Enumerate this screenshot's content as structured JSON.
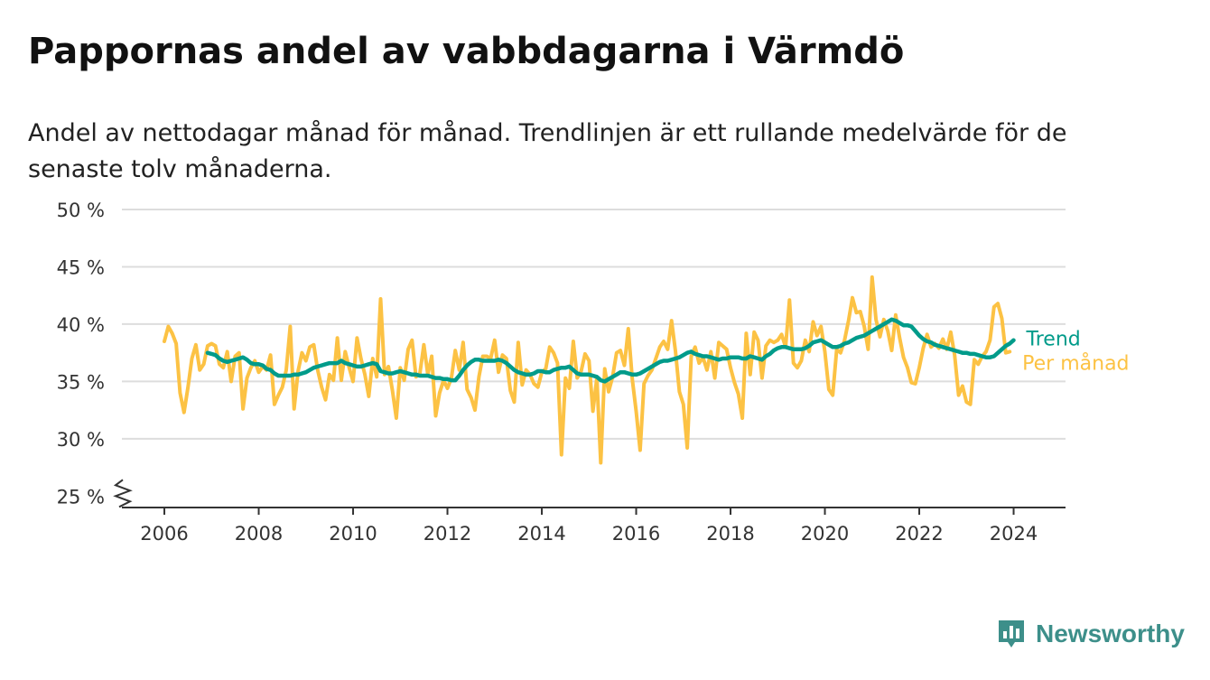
{
  "header": {
    "title": "Pappornas andel av vabbdagarna i Värmdö",
    "subtitle": "Andel av nettodagar månad för månad. Trendlinjen är ett rullande medelvärde för de senaste tolv månaderna."
  },
  "brand": {
    "name": "Newsworthy",
    "icon": "newsworthy-logo-icon",
    "color": "#3d8f8a"
  },
  "colors": {
    "monthly": "#fcc244",
    "trend": "#009b8a",
    "grid": "#dddddd",
    "axis": "#333333"
  },
  "chart_data": {
    "type": "line",
    "title": "Pappornas andel av vabbdagarna i Värmdö",
    "subtitle": "Andel av nettodagar månad för månad. Trendlinjen är ett rullande medelvärde för de senaste tolv månaderna.",
    "xlabel": "",
    "ylabel": "",
    "xlim": [
      2005.1,
      2025.1
    ],
    "ylim": [
      24,
      50
    ],
    "y_ticks": [
      {
        "value": 25,
        "label": "25 %"
      },
      {
        "value": 30,
        "label": "30 %"
      },
      {
        "value": 35,
        "label": "35 %"
      },
      {
        "value": 40,
        "label": "40 %"
      },
      {
        "value": 45,
        "label": "45 %"
      },
      {
        "value": 50,
        "label": "50 %"
      }
    ],
    "x_ticks": [
      {
        "value": 2006,
        "label": "2006"
      },
      {
        "value": 2008,
        "label": "2008"
      },
      {
        "value": 2010,
        "label": "2010"
      },
      {
        "value": 2012,
        "label": "2012"
      },
      {
        "value": 2014,
        "label": "2014"
      },
      {
        "value": 2016,
        "label": "2016"
      },
      {
        "value": 2018,
        "label": "2018"
      },
      {
        "value": 2020,
        "label": "2020"
      },
      {
        "value": 2022,
        "label": "2022"
      },
      {
        "value": 2024,
        "label": "2024"
      }
    ],
    "axis_break": true,
    "grid": true,
    "legend": "direct labels at right end of lines",
    "series": [
      {
        "name": "Per månad",
        "color": "#fcc244",
        "start": "2006-01",
        "values": [
          38.5,
          39.8,
          39.2,
          38.3,
          34.0,
          32.3,
          34.5,
          37.0,
          38.2,
          36.0,
          36.5,
          38.1,
          38.3,
          38.1,
          36.5,
          36.2,
          37.6,
          35.0,
          37.2,
          37.5,
          32.6,
          35.3,
          36.2,
          36.8,
          35.8,
          36.3,
          36.0,
          37.3,
          33.0,
          33.8,
          34.5,
          36.0,
          39.8,
          32.6,
          35.9,
          37.5,
          36.8,
          38.0,
          38.2,
          36.0,
          34.5,
          33.4,
          35.6,
          35.1,
          38.8,
          35.1,
          37.6,
          36.2,
          35.0,
          38.8,
          37.0,
          35.6,
          33.7,
          37.0,
          35.4,
          42.2,
          35.6,
          36.3,
          34.2,
          31.8,
          36.2,
          35.1,
          37.8,
          38.6,
          35.4,
          35.7,
          38.2,
          35.6,
          37.2,
          32.0,
          34.0,
          35.1,
          34.4,
          35.3,
          37.7,
          36.0,
          38.4,
          34.3,
          33.6,
          32.5,
          35.4,
          37.2,
          37.2,
          37.0,
          38.6,
          35.8,
          37.3,
          37.0,
          34.2,
          33.2,
          38.4,
          34.7,
          36.0,
          35.6,
          34.8,
          34.5,
          35.8,
          36.1,
          38.0,
          37.5,
          36.6,
          28.6,
          35.3,
          34.4,
          38.5,
          35.3,
          35.9,
          37.4,
          36.8,
          32.4,
          35.3,
          27.9,
          36.1,
          34.1,
          35.4,
          37.5,
          37.7,
          36.4,
          39.6,
          35.2,
          32.4,
          29.0,
          34.8,
          35.5,
          36.0,
          37.0,
          38.0,
          38.5,
          37.8,
          40.3,
          37.6,
          34.1,
          33.0,
          29.2,
          37.2,
          38.0,
          36.6,
          37.1,
          36.0,
          37.6,
          35.3,
          38.4,
          38.1,
          37.8,
          36.2,
          34.9,
          33.9,
          31.8,
          39.2,
          35.6,
          39.3,
          38.6,
          35.3,
          38.1,
          38.6,
          38.4,
          38.6,
          39.1,
          38.0,
          42.1,
          36.6,
          36.2,
          36.8,
          38.6,
          37.6,
          40.2,
          39.0,
          39.8,
          37.6,
          34.3,
          33.8,
          37.8,
          37.5,
          38.6,
          40.3,
          42.3,
          41.0,
          41.1,
          39.8,
          37.8,
          44.1,
          40.4,
          38.9,
          40.4,
          39.4,
          37.7,
          40.8,
          38.8,
          37.1,
          36.2,
          34.9,
          34.8,
          36.2,
          37.9,
          39.1,
          38.0,
          38.3,
          37.9,
          38.7,
          37.8,
          39.3,
          37.3,
          33.8,
          34.6,
          33.2,
          33.0,
          36.9,
          36.5,
          37.2,
          37.6,
          38.6,
          41.5,
          41.8,
          40.5,
          37.5,
          37.6
        ]
      },
      {
        "name": "Trend",
        "color": "#009b8a",
        "start": "2006-12",
        "values": [
          37.5,
          37.4,
          37.3,
          37.0,
          36.8,
          36.7,
          36.8,
          36.9,
          37.0,
          37.1,
          36.9,
          36.6,
          36.5,
          36.5,
          36.4,
          36.1,
          36.0,
          35.7,
          35.5,
          35.5,
          35.5,
          35.5,
          35.6,
          35.6,
          35.7,
          35.8,
          36.0,
          36.2,
          36.3,
          36.4,
          36.5,
          36.6,
          36.6,
          36.6,
          36.8,
          36.6,
          36.5,
          36.4,
          36.3,
          36.3,
          36.4,
          36.5,
          36.6,
          36.5,
          35.9,
          35.8,
          35.7,
          35.7,
          35.8,
          35.9,
          35.8,
          35.7,
          35.6,
          35.6,
          35.5,
          35.5,
          35.5,
          35.4,
          35.3,
          35.3,
          35.2,
          35.2,
          35.1,
          35.1,
          35.5,
          36.0,
          36.4,
          36.7,
          36.9,
          36.9,
          36.8,
          36.8,
          36.8,
          36.8,
          36.9,
          36.8,
          36.6,
          36.3,
          36.0,
          35.8,
          35.7,
          35.6,
          35.6,
          35.7,
          35.9,
          35.9,
          35.8,
          35.8,
          36.0,
          36.1,
          36.2,
          36.2,
          36.3,
          36.0,
          35.7,
          35.6,
          35.6,
          35.6,
          35.5,
          35.4,
          35.1,
          35.0,
          35.2,
          35.4,
          35.6,
          35.8,
          35.8,
          35.7,
          35.6,
          35.6,
          35.7,
          35.9,
          36.1,
          36.3,
          36.5,
          36.7,
          36.8,
          36.8,
          36.9,
          37.0,
          37.1,
          37.3,
          37.5,
          37.6,
          37.4,
          37.3,
          37.2,
          37.2,
          37.1,
          37.0,
          36.9,
          37.0,
          37.0,
          37.1,
          37.1,
          37.1,
          37.0,
          37.0,
          37.2,
          37.1,
          37.0,
          36.9,
          37.2,
          37.4,
          37.7,
          37.9,
          38.0,
          38.0,
          37.9,
          37.8,
          37.8,
          37.8,
          37.9,
          38.1,
          38.4,
          38.5,
          38.6,
          38.4,
          38.2,
          38.0,
          38.0,
          38.1,
          38.3,
          38.4,
          38.6,
          38.8,
          38.9,
          39.0,
          39.2,
          39.4,
          39.6,
          39.8,
          40.0,
          40.2,
          40.4,
          40.3,
          40.1,
          39.9,
          39.9,
          39.8,
          39.4,
          39.0,
          38.7,
          38.5,
          38.4,
          38.2,
          38.1,
          38.0,
          37.9,
          37.8,
          37.7,
          37.6,
          37.5,
          37.5,
          37.4,
          37.4,
          37.3,
          37.2,
          37.1,
          37.1,
          37.2,
          37.5,
          37.8,
          38.1,
          38.3,
          38.6
        ]
      }
    ]
  }
}
